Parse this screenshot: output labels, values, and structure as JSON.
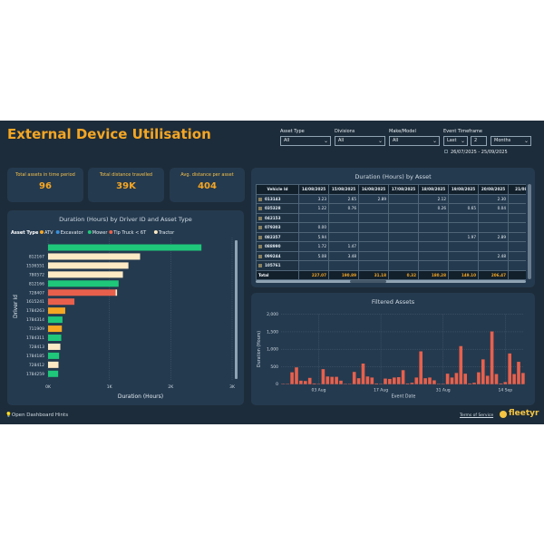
{
  "title": "External Device Utilisation",
  "colors": {
    "accent": "#f5a623",
    "background": "#1d2c3a",
    "panel": "#243a4f",
    "bar": "#e8604c"
  },
  "filters": [
    {
      "label": "Asset Type",
      "value": "All"
    },
    {
      "label": "Divisions",
      "value": "All"
    },
    {
      "label": "Make/Model",
      "value": "All"
    }
  ],
  "timeframe": {
    "label": "Event Timeframe",
    "mode": "Last",
    "count": "2",
    "unit": "Months",
    "range": "26/07/2025 - 25/09/2025"
  },
  "kpis": [
    {
      "label": "Total assets in time period",
      "value": "96"
    },
    {
      "label": "Total distance travelled",
      "value": "39K"
    },
    {
      "label": "Avg. distance per asset",
      "value": "404"
    }
  ],
  "driver_chart": {
    "title": "Duration (Hours) by Driver ID and Asset Type",
    "legend_title": "Asset Type",
    "legend": [
      {
        "name": "ATV",
        "color": "#f5a623"
      },
      {
        "name": "Excavator",
        "color": "#3a8fd9"
      },
      {
        "name": "Mower",
        "color": "#1ec77a"
      },
      {
        "name": "Tip Truck < 6T",
        "color": "#e8604c"
      },
      {
        "name": "Tractor",
        "color": "#fde9c4"
      }
    ],
    "xlabel": "Duration (Hours)",
    "ylabel": "Driver Id",
    "xticks": [
      "0K",
      "1K",
      "2K",
      "3K"
    ]
  },
  "table": {
    "title": "Duration (Hours) by Asset",
    "columns": [
      "Vehicle Id",
      "14/08/2025",
      "15/08/2025",
      "16/08/2025",
      "17/08/2025",
      "18/08/2025",
      "19/08/2025",
      "20/08/2025",
      "21/08/2"
    ],
    "rows": [
      [
        "013143",
        "3.23",
        "2.65",
        "2.89",
        "",
        "2.12",
        "",
        "2.30",
        ""
      ],
      [
        "035328",
        "1.22",
        "0.76",
        "",
        "",
        "0.26",
        "0.65",
        "0.04",
        ""
      ],
      [
        "042153",
        "",
        "",
        "",
        "",
        "",
        "",
        "",
        ""
      ],
      [
        "079303",
        "0.00",
        "",
        "",
        "",
        "",
        "",
        "",
        ""
      ],
      [
        "082357",
        "5.94",
        "",
        "",
        "",
        "",
        "1.97",
        "2.89",
        ""
      ],
      [
        "088990",
        "1.72",
        "1.47",
        "",
        "",
        "",
        "",
        "",
        ""
      ],
      [
        "099244",
        "5.08",
        "3.48",
        "",
        "",
        "",
        "",
        "2.48",
        ""
      ],
      [
        "105761",
        "",
        "",
        "",
        "",
        "",
        "",
        "",
        ""
      ]
    ],
    "total": [
      "Total",
      "227.07",
      "190.89",
      "31.18",
      "0.32",
      "180.28",
      "149.10",
      "206.47",
      "20"
    ]
  },
  "filtered_chart": {
    "title": "Filtered Assets",
    "xlabel": "Event Date",
    "ylabel": "Duration (Hours)",
    "yticks": [
      "0",
      "500",
      "1,000",
      "1,500",
      "2,000"
    ],
    "xticks": [
      "03 Aug",
      "17 Aug",
      "31 Aug",
      "14 Sep"
    ]
  },
  "chart_data": [
    {
      "type": "bar",
      "orientation": "horizontal",
      "title": "Duration (Hours) by Driver ID and Asset Type",
      "xlabel": "Duration (Hours)",
      "ylabel": "Driver Id",
      "xlim": [
        0,
        3000
      ],
      "categories": [
        "",
        "812167",
        "1536551",
        "780572",
        "812166",
        "728407",
        "1615241",
        "1784263",
        "1784314",
        "711909",
        "1784311",
        "728413",
        "1784185",
        "728412",
        "1784259"
      ],
      "series": [
        {
          "name": "Mower",
          "values": [
            2500,
            0,
            0,
            0,
            1150,
            0,
            0,
            0,
            235,
            0,
            215,
            0,
            180,
            0,
            165
          ]
        },
        {
          "name": "Tip Truck < 6T",
          "values": [
            0,
            0,
            0,
            0,
            0,
            1100,
            430,
            0,
            0,
            0,
            0,
            0,
            0,
            0,
            0
          ]
        },
        {
          "name": "Tractor",
          "values": [
            0,
            1500,
            1310,
            1220,
            0,
            25,
            0,
            0,
            0,
            0,
            0,
            200,
            0,
            170,
            0
          ]
        },
        {
          "name": "ATV",
          "values": [
            0,
            0,
            0,
            0,
            0,
            0,
            0,
            280,
            0,
            225,
            0,
            0,
            0,
            0,
            0
          ]
        },
        {
          "name": "Excavator",
          "values": [
            0,
            0,
            0,
            0,
            0,
            0,
            0,
            0,
            0,
            0,
            0,
            0,
            0,
            0,
            0
          ]
        }
      ]
    },
    {
      "type": "bar",
      "title": "Filtered Assets",
      "xlabel": "Event Date",
      "ylabel": "Duration (Hours)",
      "ylim": [
        0,
        2000
      ],
      "x_start": "2025-07-26",
      "values": [
        10,
        10,
        340,
        480,
        100,
        90,
        180,
        20,
        10,
        430,
        220,
        210,
        210,
        100,
        10,
        10,
        350,
        170,
        590,
        220,
        190,
        20,
        10,
        160,
        150,
        190,
        200,
        400,
        20,
        40,
        190,
        940,
        170,
        190,
        110,
        10,
        10,
        300,
        190,
        320,
        1090,
        300,
        20,
        40,
        340,
        710,
        240,
        1510,
        290,
        20,
        60,
        880,
        290,
        640,
        320
      ]
    }
  ],
  "footer": {
    "hints": "Open Dashboard Hints",
    "terms": "Terms of Service",
    "logo": "fleetyr"
  }
}
